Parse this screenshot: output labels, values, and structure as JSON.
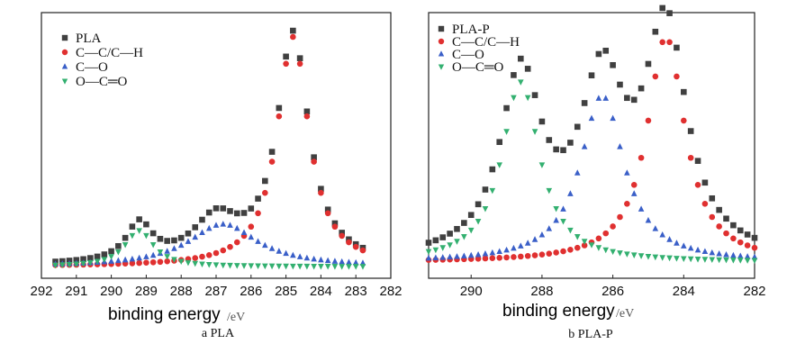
{
  "chart_data": [
    {
      "type": "scatter",
      "caption": "a  PLA",
      "xlabel": "binding energy",
      "xunit": "/eV",
      "xlim": [
        292,
        282
      ],
      "xticks": [
        292,
        291,
        290,
        289,
        288,
        287,
        286,
        285,
        284,
        283,
        282
      ],
      "legend_position": "top-left",
      "series": [
        {
          "name": "PLA",
          "marker": "square",
          "color": "#404040",
          "peaks": [
            [
              284.8,
              255,
              0.55
            ],
            [
              289.2,
              42,
              0.45
            ],
            [
              287.0,
              47,
              0.8
            ]
          ],
          "baseline": 1.0,
          "xrange": [
            291.6,
            282.7
          ],
          "step": 0.2
        },
        {
          "name": "C—C/C—H",
          "marker": "circle",
          "color": "#e03030",
          "peaks": [
            [
              284.8,
              255,
              0.55
            ]
          ],
          "baseline": 0,
          "xrange": [
            291.6,
            282.7
          ],
          "step": 0.2
        },
        {
          "name": "C—O",
          "marker": "triangle-up",
          "color": "#3a5fc8",
          "peaks": [
            [
              286.8,
              47,
              1.2
            ]
          ],
          "baseline": 0,
          "xrange": [
            291.6,
            282.7
          ],
          "step": 0.2
        },
        {
          "name": "O—C═O",
          "marker": "triangle-down",
          "color": "#33b070",
          "peaks": [
            [
              289.2,
              40,
              0.5
            ]
          ],
          "baseline": 0,
          "xrange": [
            291.6,
            282.7
          ],
          "step": 0.2
        }
      ]
    },
    {
      "type": "scatter",
      "caption": "b  PLA-P",
      "xlabel": "binding energy",
      "xunit": "/eV",
      "xlim": [
        291.2,
        282
      ],
      "xticks": [
        290,
        288,
        286,
        284,
        282
      ],
      "legend_position": "top-left",
      "series": [
        {
          "name": "PLA-P",
          "marker": "square",
          "color": "#404040",
          "peaks": [
            [
              284.5,
              250,
              0.7
            ],
            [
              288.6,
              200,
              0.7
            ],
            [
              286.3,
              185,
              0.75
            ]
          ],
          "baseline": 1.0,
          "xrange": [
            291.2,
            282
          ],
          "step": 0.2
        },
        {
          "name": "C—C/C—H",
          "marker": "circle",
          "color": "#e03030",
          "peaks": [
            [
              284.5,
              250,
              0.65
            ]
          ],
          "baseline": 0,
          "xrange": [
            291.2,
            282
          ],
          "step": 0.2
        },
        {
          "name": "C—O",
          "marker": "triangle-up",
          "color": "#3a5fc8",
          "peaks": [
            [
              286.3,
              185,
              0.75
            ]
          ],
          "baseline": 0,
          "xrange": [
            291.2,
            282
          ],
          "step": 0.2
        },
        {
          "name": "O—C═O",
          "marker": "triangle-down",
          "color": "#33b070",
          "peaks": [
            [
              288.6,
              200,
              0.65
            ]
          ],
          "baseline": 0,
          "xrange": [
            291.2,
            282
          ],
          "step": 0.2
        }
      ]
    }
  ]
}
